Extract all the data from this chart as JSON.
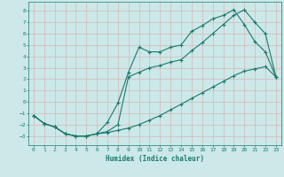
{
  "xlabel": "Humidex (Indice chaleur)",
  "bg_color": "#cce8e8",
  "grid_color": "#d4b8b8",
  "line_color": "#1a7a6e",
  "xlim": [
    -0.5,
    23.5
  ],
  "ylim": [
    -3.8,
    8.8
  ],
  "xticks": [
    0,
    1,
    2,
    3,
    4,
    5,
    6,
    7,
    8,
    9,
    10,
    11,
    12,
    13,
    14,
    15,
    16,
    17,
    18,
    19,
    20,
    21,
    22,
    23
  ],
  "yticks": [
    -3,
    -2,
    -1,
    0,
    1,
    2,
    3,
    4,
    5,
    6,
    7,
    8
  ],
  "line1_x": [
    0,
    1,
    2,
    3,
    4,
    5,
    6,
    7,
    8,
    9,
    10,
    11,
    12,
    13,
    14,
    15,
    16,
    17,
    18,
    19,
    20,
    21,
    22,
    23
  ],
  "line1_y": [
    -1.2,
    -1.9,
    -2.2,
    -2.8,
    -3.0,
    -3.0,
    -2.8,
    -1.8,
    -0.1,
    2.6,
    4.8,
    4.4,
    4.4,
    4.8,
    5.0,
    6.2,
    6.7,
    7.3,
    7.6,
    8.1,
    6.8,
    5.3,
    4.4,
    2.2
  ],
  "line2_x": [
    0,
    1,
    2,
    3,
    4,
    5,
    6,
    7,
    8,
    9,
    10,
    11,
    12,
    13,
    14,
    15,
    16,
    17,
    18,
    19,
    20,
    21,
    22,
    23
  ],
  "line2_y": [
    -1.2,
    -1.9,
    -2.2,
    -2.8,
    -3.0,
    -3.0,
    -2.8,
    -2.6,
    -2.0,
    2.2,
    2.6,
    3.0,
    3.2,
    3.5,
    3.7,
    4.5,
    5.2,
    6.0,
    6.8,
    7.6,
    8.1,
    7.0,
    6.0,
    2.2
  ],
  "line3_x": [
    0,
    1,
    2,
    3,
    4,
    5,
    6,
    7,
    8,
    9,
    10,
    11,
    12,
    13,
    14,
    15,
    16,
    17,
    18,
    19,
    20,
    21,
    22,
    23
  ],
  "line3_y": [
    -1.2,
    -1.9,
    -2.2,
    -2.8,
    -3.0,
    -3.0,
    -2.8,
    -2.7,
    -2.5,
    -2.3,
    -2.0,
    -1.6,
    -1.2,
    -0.7,
    -0.2,
    0.3,
    0.8,
    1.3,
    1.8,
    2.3,
    2.7,
    2.9,
    3.1,
    2.2
  ]
}
